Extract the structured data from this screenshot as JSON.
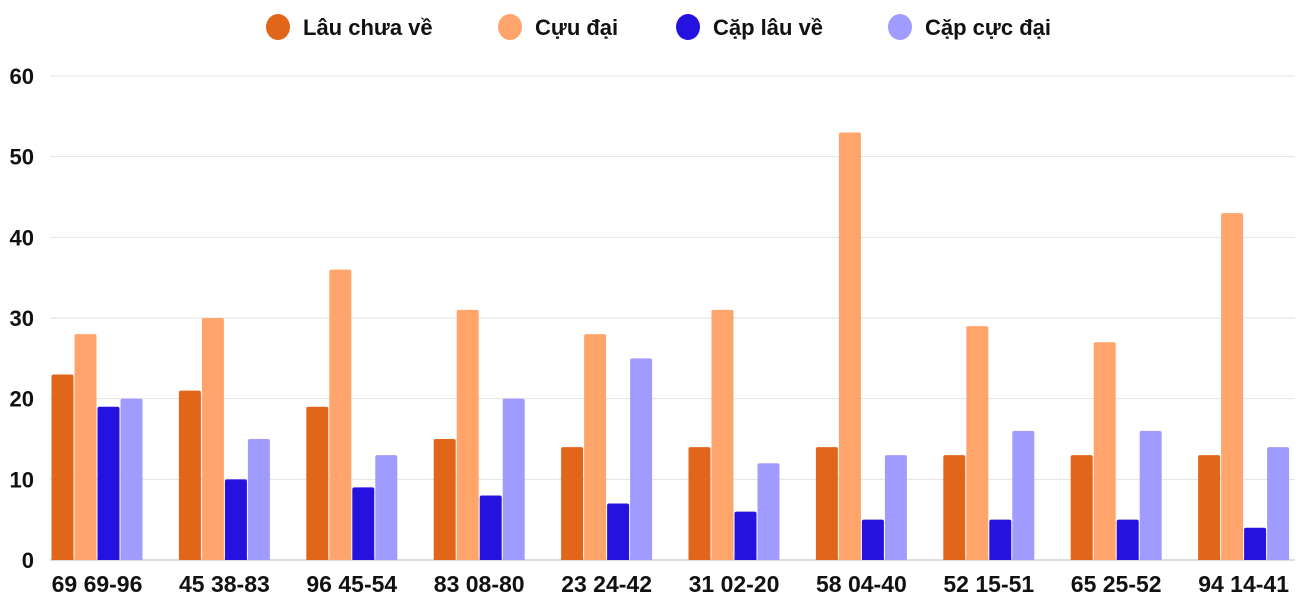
{
  "chart_data": {
    "type": "bar",
    "title": "",
    "xlabel": "",
    "ylabel": "",
    "ylim": [
      0,
      60
    ],
    "yticks": [
      0,
      10,
      20,
      30,
      40,
      50,
      60
    ],
    "grid": true,
    "legend_position": "top-center",
    "categories": [
      "69 69-96",
      "45 38-83",
      "96 45-54",
      "83 08-80",
      "23 24-42",
      "31 02-20",
      "58 04-40",
      "52 15-51",
      "65 25-52",
      "94 14-41"
    ],
    "series": [
      {
        "name": "Lâu chưa về",
        "color": "#e2661a",
        "values": [
          23,
          21,
          19,
          15,
          14,
          14,
          14,
          13,
          13,
          13
        ]
      },
      {
        "name": "Cựu đại",
        "color": "#ffa46b",
        "values": [
          28,
          30,
          36,
          31,
          28,
          31,
          53,
          29,
          27,
          43
        ]
      },
      {
        "name": "Cặp lâu về",
        "color": "#2512e0",
        "values": [
          19,
          10,
          9,
          8,
          7,
          6,
          5,
          5,
          5,
          4
        ]
      },
      {
        "name": "Cặp cực đại",
        "color": "#a09bff",
        "values": [
          20,
          15,
          13,
          20,
          25,
          12,
          13,
          16,
          16,
          14
        ]
      }
    ]
  }
}
